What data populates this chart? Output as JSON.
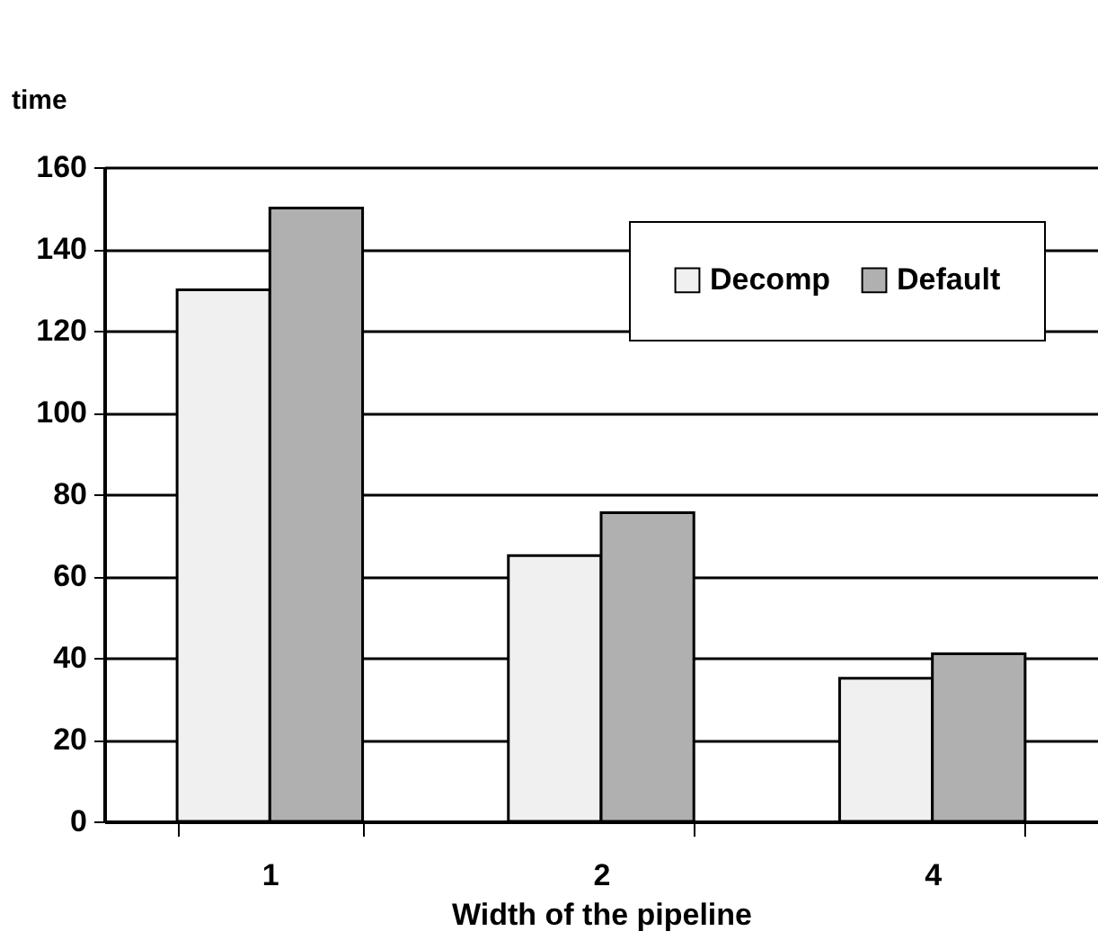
{
  "chart_data": {
    "type": "bar",
    "xlabel": "Width of the pipeline",
    "ylabel": "time",
    "categories": [
      "1",
      "2",
      "4"
    ],
    "series": [
      {
        "name": "Decomp",
        "color": "#f0f0f0",
        "values": [
          130,
          65,
          35
        ]
      },
      {
        "name": "Default",
        "color": "#b0b0b0",
        "values": [
          150,
          75.5,
          41
        ]
      }
    ],
    "ylim": [
      0,
      160
    ],
    "yticks": [
      0,
      20,
      40,
      60,
      80,
      100,
      120,
      140,
      160
    ],
    "grid": "y",
    "legend": "top right"
  }
}
